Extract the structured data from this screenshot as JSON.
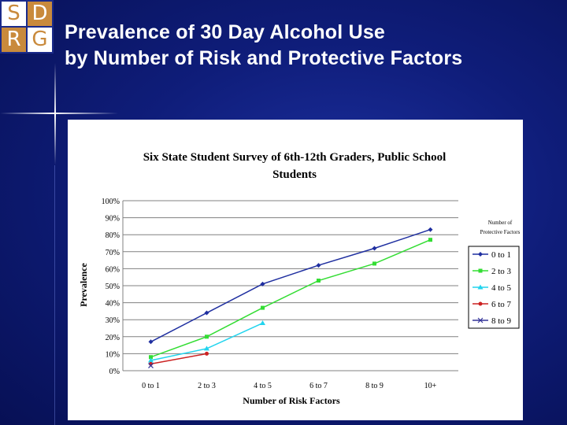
{
  "logo": {
    "letters": [
      "S",
      "D",
      "R",
      "G"
    ]
  },
  "slide": {
    "title_line1": "Prevalence of 30 Day Alcohol Use",
    "title_line2": "by Number of Risk and Protective Factors"
  },
  "chart_data": {
    "type": "line",
    "title_line1": "Six State Student Survey of 6th-12th Graders, Public School",
    "title_line2": "Students",
    "xlabel": "Number of Risk Factors",
    "ylabel": "Prevalence",
    "categories": [
      "0 to 1",
      "2 to 3",
      "4 to 5",
      "6 to 7",
      "8 to 9",
      "10+"
    ],
    "yticks": [
      "0%",
      "10%",
      "20%",
      "30%",
      "40%",
      "50%",
      "60%",
      "70%",
      "80%",
      "90%",
      "100%"
    ],
    "ylim": [
      0,
      100
    ],
    "legend_title_line1": "Number of",
    "legend_title_line2": "Protective Factors",
    "series": [
      {
        "name": "0 to 1",
        "color": "#1f2fa0",
        "marker": "diamond",
        "values": [
          17,
          34,
          51,
          62,
          72,
          83
        ]
      },
      {
        "name": "2 to 3",
        "color": "#33dd33",
        "marker": "square",
        "values": [
          8,
          20,
          37,
          53,
          63,
          77
        ]
      },
      {
        "name": "4 to 5",
        "color": "#22d4ee",
        "marker": "triangle",
        "values": [
          6,
          13,
          28,
          null,
          null,
          null
        ]
      },
      {
        "name": "6 to 7",
        "color": "#cc2222",
        "marker": "circle",
        "values": [
          4,
          10,
          null,
          null,
          null,
          null
        ]
      },
      {
        "name": "8 to 9",
        "color": "#333399",
        "marker": "x",
        "values": [
          3,
          null,
          null,
          null,
          null,
          null
        ]
      }
    ]
  }
}
